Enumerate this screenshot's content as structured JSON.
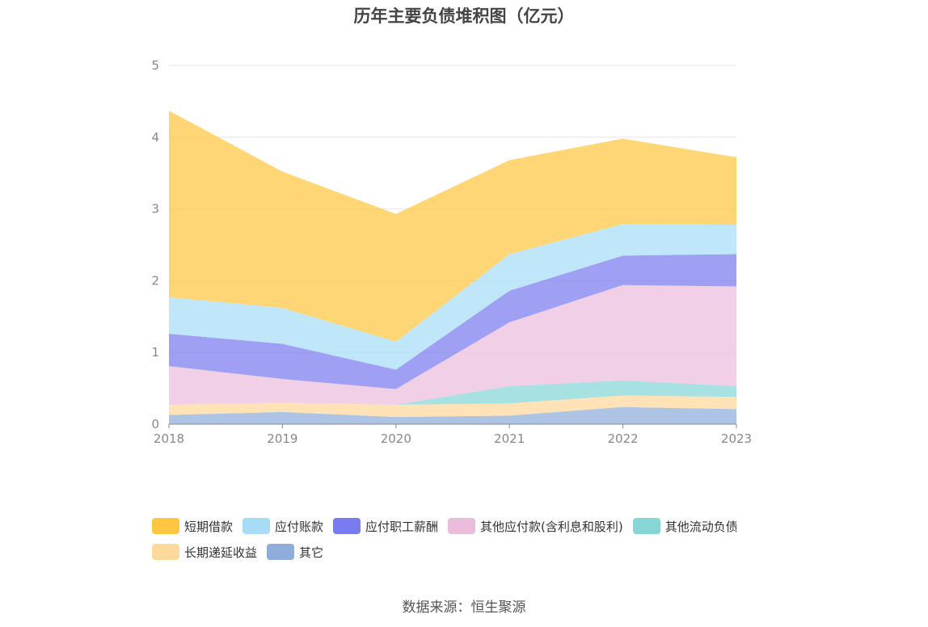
{
  "chart_data": {
    "type": "area",
    "stacked": true,
    "title": "历年主要负债堆积图（亿元）",
    "categories": [
      "2018",
      "2019",
      "2020",
      "2021",
      "2022",
      "2023"
    ],
    "ylim": [
      0,
      5
    ],
    "yticks": [
      "0",
      "1",
      "2",
      "3",
      "4",
      "5"
    ],
    "grid": true,
    "legend_position": "bottom",
    "series": [
      {
        "name": "其它",
        "color": "#8eaddb",
        "values": [
          0.13,
          0.17,
          0.1,
          0.12,
          0.24,
          0.21
        ]
      },
      {
        "name": "长期递延收益",
        "color": "#ffd89b",
        "values": [
          0.14,
          0.13,
          0.17,
          0.17,
          0.16,
          0.17
        ]
      },
      {
        "name": "其他流动负债",
        "color": "#86d6d6",
        "values": [
          0.0,
          0.0,
          0.0,
          0.24,
          0.21,
          0.15
        ]
      },
      {
        "name": "其他应付款(含利息和股利)",
        "color": "#ebbcdc",
        "values": [
          0.54,
          0.33,
          0.22,
          0.89,
          1.33,
          1.39
        ]
      },
      {
        "name": "应付职工薪酬",
        "color": "#7a7bf0",
        "values": [
          0.45,
          0.49,
          0.27,
          0.44,
          0.41,
          0.45
        ]
      },
      {
        "name": "应付账款",
        "color": "#a7dcf7",
        "values": [
          0.51,
          0.5,
          0.39,
          0.51,
          0.44,
          0.41
        ]
      },
      {
        "name": "短期借款",
        "color": "#ffc641",
        "values": [
          2.6,
          1.9,
          1.78,
          1.31,
          1.19,
          0.94
        ]
      }
    ]
  },
  "legend_order": [
    "短期借款",
    "应付账款",
    "应付职工薪酬",
    "其他应付款(含利息和股利)",
    "其他流动负债",
    "长期递延收益",
    "其它"
  ],
  "source": "数据来源：恒生聚源"
}
